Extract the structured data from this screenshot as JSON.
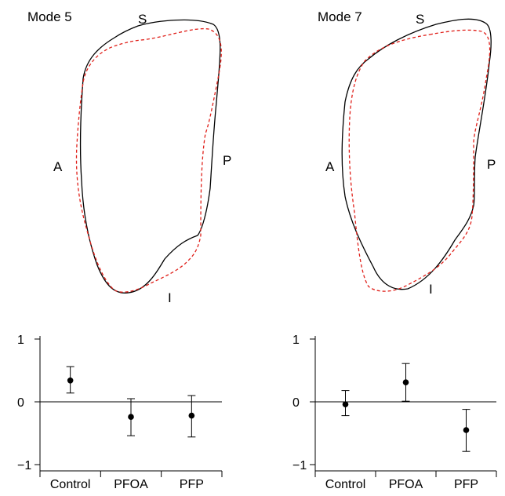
{
  "colors": {
    "mean_shape": "#000000",
    "mode_shape": "#e0201a"
  },
  "panels": [
    {
      "mode_label": "Mode 5",
      "orient": {
        "superior": "S",
        "anterior": "A",
        "posterior": "P",
        "inferior": "I"
      }
    },
    {
      "mode_label": "Mode 7",
      "orient": {
        "superior": "S",
        "anterior": "A",
        "posterior": "P",
        "inferior": "I"
      }
    }
  ],
  "chart_data": [
    {
      "type": "scatter",
      "title": "Mode 5",
      "categories": [
        "Control",
        "PFOA",
        "PFP"
      ],
      "ylim": [
        -1,
        1
      ],
      "yticks": [
        "1",
        "0",
        "−1"
      ],
      "series": [
        {
          "mean": [
            0.34,
            -0.24,
            -0.22
          ],
          "lower": [
            0.14,
            -0.54,
            -0.56
          ],
          "upper": [
            0.56,
            0.05,
            0.1
          ]
        }
      ],
      "grid": false
    },
    {
      "type": "scatter",
      "title": "Mode 7",
      "categories": [
        "Control",
        "PFOA",
        "PFP"
      ],
      "ylim": [
        -1,
        1
      ],
      "yticks": [
        "1",
        "0",
        "−1"
      ],
      "series": [
        {
          "mean": [
            -0.04,
            0.31,
            -0.45
          ],
          "lower": [
            -0.22,
            0.01,
            -0.79
          ],
          "upper": [
            0.18,
            0.61,
            -0.12
          ]
        }
      ],
      "grid": false
    }
  ]
}
